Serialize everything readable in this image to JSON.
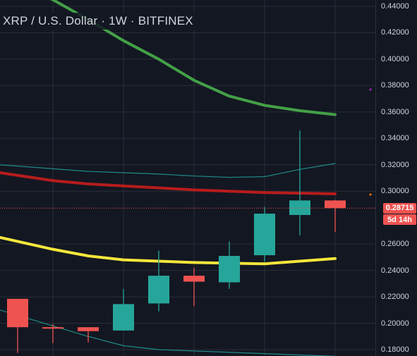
{
  "header": {
    "symbol_title": "XRP / U.S. Dollar · 1W · BITFINEX"
  },
  "price_axis": {
    "ticks": [
      "0.44000",
      "0.42000",
      "0.40000",
      "0.38000",
      "0.36000",
      "0.34000",
      "0.32000",
      "0.30000",
      "0.26000",
      "0.24000",
      "0.22000",
      "0.20000",
      "0.18000"
    ],
    "last_price": "0.28715",
    "countdown": "5d 14h",
    "last_price_color": "#ef5350"
  },
  "colors": {
    "up": "#26a69a",
    "down": "#ef5350",
    "ma_green": "#43a047",
    "ma_red": "#b71c1c",
    "ma_yellow": "#f5e63b",
    "envelope": "#1f8a86",
    "background": "#131722",
    "grid": "#2a2e39"
  },
  "chart_data": {
    "type": "candlestick",
    "title": "XRP / U.S. Dollar · 1W · BITFINEX",
    "y_range": [
      0.18,
      0.445
    ],
    "candles": [
      {
        "o": 0.2185,
        "h": 0.2185,
        "l": 0.1775,
        "c": 0.197
      },
      {
        "o": 0.197,
        "h": 0.1995,
        "l": 0.185,
        "c": 0.1965
      },
      {
        "o": 0.197,
        "h": 0.197,
        "l": 0.1855,
        "c": 0.194
      },
      {
        "o": 0.1945,
        "h": 0.226,
        "l": 0.1945,
        "c": 0.2145
      },
      {
        "o": 0.215,
        "h": 0.255,
        "l": 0.209,
        "c": 0.236
      },
      {
        "o": 0.236,
        "h": 0.242,
        "l": 0.213,
        "c": 0.2315
      },
      {
        "o": 0.231,
        "h": 0.262,
        "l": 0.226,
        "c": 0.251
      },
      {
        "o": 0.2515,
        "h": 0.288,
        "l": 0.2465,
        "c": 0.283
      },
      {
        "o": 0.282,
        "h": 0.346,
        "l": 0.2665,
        "c": 0.293
      },
      {
        "o": 0.293,
        "h": 0.2935,
        "l": 0.269,
        "c": 0.2872
      }
    ],
    "series": [
      {
        "values": [
          0.456,
          0.445,
          0.43,
          0.414,
          0.4,
          0.384,
          0.372,
          0.365,
          0.361,
          0.358
        ]
      },
      {
        "values": [
          0.312,
          0.308,
          0.3055,
          0.304,
          0.3025,
          0.301,
          0.3,
          0.299,
          0.2985,
          0.298
        ]
      },
      {
        "values": [
          0.262,
          0.256,
          0.251,
          0.248,
          0.247,
          0.246,
          0.2455,
          0.245,
          0.247,
          0.249
        ]
      },
      {
        "values": [
          0.319,
          0.317,
          0.315,
          0.314,
          0.313,
          0.3115,
          0.3105,
          0.311,
          0.3165,
          0.321
        ]
      },
      {
        "values": [
          0.206,
          0.198,
          0.19,
          0.183,
          0.18,
          0.179,
          0.178,
          0.177,
          0.176,
          0.175
        ]
      }
    ]
  }
}
